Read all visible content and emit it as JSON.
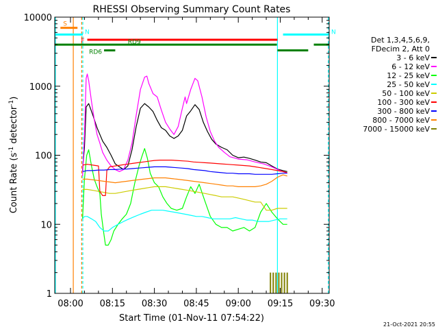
{
  "chart_data": {
    "type": "line",
    "title": "RHESSI Observing Summary Count Rates",
    "xlabel": "Start Time (01-Nov-11 07:54:22)",
    "ylabel": "Count Rate (s⁻¹ detector⁻¹)",
    "y_scale": "log",
    "ylim": [
      1,
      10000
    ],
    "xlim_minutes_of_day": [
      474.37,
      572.5
    ],
    "x_ticks": [
      {
        "label": "08:00",
        "value": 480
      },
      {
        "label": "08:15",
        "value": 495
      },
      {
        "label": "08:30",
        "value": 510
      },
      {
        "label": "08:45",
        "value": 525
      },
      {
        "label": "09:00",
        "value": 540
      },
      {
        "label": "09:15",
        "value": 555
      },
      {
        "label": "09:30",
        "value": 570
      }
    ],
    "y_ticks": [
      {
        "label": "1",
        "value": 1
      },
      {
        "label": "10",
        "value": 10
      },
      {
        "label": "100",
        "value": 100
      },
      {
        "label": "1000",
        "value": 1000
      },
      {
        "label": "10000",
        "value": 10000
      }
    ],
    "legend_header": [
      "Det 1,3,4,5,6,9,",
      "FDecim 2, Att 0"
    ],
    "legend_position": "right",
    "timestamp": "21-Oct-2021 20:55",
    "series": [
      {
        "name": "3 - 6 keV",
        "color": "#000000",
        "x": [
          484.3,
          485.0,
          485.6,
          486.5,
          488.0,
          489.5,
          490.5,
          491.5,
          493.0,
          494.5,
          496.0,
          497.5,
          499.0,
          500.5,
          502.0,
          503.5,
          505.0,
          506.5,
          508.0,
          509.5,
          511.0,
          512.5,
          514.0,
          515.5,
          517.0,
          518.5,
          520.0,
          521.5,
          523.0,
          524.5,
          526.0,
          527.5,
          529.0,
          530.5,
          532.0,
          534.0,
          536.0,
          538.0,
          540.0,
          542.0,
          544.0,
          546.0,
          548.0,
          550.0,
          552.0,
          554.0,
          556.0,
          557.5
        ],
        "y": [
          60,
          130,
          500,
          560,
          380,
          250,
          200,
          160,
          130,
          100,
          75,
          68,
          62,
          70,
          120,
          260,
          480,
          560,
          500,
          430,
          320,
          250,
          230,
          190,
          175,
          190,
          230,
          370,
          440,
          540,
          460,
          300,
          220,
          170,
          145,
          130,
          120,
          100,
          92,
          94,
          90,
          85,
          80,
          78,
          70,
          63,
          60,
          58
        ]
      },
      {
        "name": "6 - 12 keV",
        "color": "#ff00ff",
        "x": [
          484.3,
          485.0,
          485.6,
          486.0,
          486.5,
          487.5,
          488.5,
          489.5,
          490.5,
          491.5,
          493.0,
          494.5,
          496.0,
          497.5,
          499.0,
          500.5,
          502.0,
          503.5,
          505.0,
          506.5,
          507.3,
          508.0,
          509.5,
          511.0,
          512.5,
          514.0,
          515.5,
          517.0,
          518.5,
          520.0,
          521.0,
          521.5,
          523.0,
          524.5,
          525.5,
          527.0,
          528.5,
          530.0,
          531.5,
          533.0,
          535.0,
          537.0,
          540.0,
          543.0,
          546.0,
          549.0,
          552.0,
          555.0,
          557.5
        ],
        "y": [
          50,
          200,
          1300,
          1500,
          1200,
          600,
          330,
          200,
          150,
          110,
          85,
          70,
          62,
          58,
          62,
          85,
          150,
          380,
          900,
          1350,
          1400,
          1100,
          780,
          700,
          450,
          300,
          240,
          200,
          260,
          480,
          700,
          560,
          900,
          1300,
          1200,
          700,
          360,
          220,
          160,
          130,
          110,
          95,
          88,
          86,
          80,
          75,
          68,
          60,
          55
        ]
      },
      {
        "name": "12 - 25 keV",
        "color": "#00ff00",
        "x": [
          484.3,
          485.0,
          485.8,
          486.5,
          487.5,
          488.5,
          489.5,
          490.5,
          491.0,
          491.8,
          492.5,
          493.5,
          494.5,
          495.5,
          497.0,
          498.5,
          500.0,
          501.5,
          503.0,
          504.5,
          505.5,
          506.5,
          507.5,
          508.5,
          510.0,
          511.5,
          513.0,
          514.5,
          516.0,
          518.0,
          520.0,
          521.5,
          523.0,
          524.5,
          526.0,
          528.0,
          530.0,
          532.0,
          534.0,
          536.0,
          538.0,
          540.0,
          542.0,
          544.0,
          546.0,
          548.0,
          550.0,
          552.0,
          554.0,
          556.0,
          557.5
        ],
        "y": [
          12,
          45,
          100,
          120,
          70,
          45,
          35,
          28,
          14,
          8,
          5,
          5,
          6,
          8,
          10,
          12,
          14,
          20,
          40,
          70,
          95,
          125,
          90,
          55,
          40,
          35,
          25,
          20,
          17,
          16,
          17,
          25,
          35,
          28,
          38,
          22,
          13,
          10,
          9,
          9,
          8,
          8.5,
          9,
          8,
          9,
          15,
          20,
          15,
          12,
          10,
          10
        ]
      },
      {
        "name": "25 - 50 keV",
        "color": "#00ffff",
        "x": [
          484.3,
          485.0,
          486.0,
          487.5,
          489.0,
          490.5,
          492.0,
          493.5,
          495.0,
          497.0,
          499.0,
          501.0,
          503.0,
          505.0,
          507.0,
          509.0,
          511.0,
          513.0,
          515.0,
          517.0,
          519.0,
          521.0,
          523.0,
          525.0,
          527.0,
          529.0,
          531.0,
          533.0,
          535.0,
          537.0,
          539.0,
          541.0,
          543.0,
          545.0,
          547.0,
          549.0,
          551.0,
          553.0,
          555.0,
          557.5
        ],
        "y": [
          12,
          13,
          13,
          12,
          11,
          9,
          8,
          8,
          9,
          10,
          11,
          12,
          13,
          14,
          15,
          16,
          16,
          16,
          15.5,
          15,
          14.5,
          14,
          13.5,
          13,
          13,
          12.5,
          12,
          12,
          12,
          12,
          12.5,
          12,
          11.5,
          11.5,
          11,
          11,
          11,
          11.5,
          12,
          12
        ]
      },
      {
        "name": "50 - 100 keV",
        "color": "#cccc00",
        "x": [
          484.3,
          486.0,
          488.0,
          490.0,
          492.0,
          494.0,
          496.0,
          498.0,
          500.0,
          502.0,
          504.0,
          506.0,
          508.0,
          510.0,
          512.0,
          514.0,
          516.0,
          518.0,
          520.0,
          522.0,
          524.0,
          526.0,
          528.0,
          530.0,
          532.0,
          534.0,
          536.0,
          538.0,
          540.0,
          542.0,
          544.0,
          546.0,
          548.0,
          550.0,
          552.0,
          554.0,
          556.0,
          557.5
        ],
        "y": [
          32,
          32,
          31,
          30,
          29,
          28,
          28,
          29,
          30,
          31,
          32,
          33,
          34,
          35,
          35,
          35,
          34,
          33,
          32,
          31,
          30,
          29,
          28,
          27,
          26,
          25,
          25,
          25,
          24,
          23,
          22,
          21,
          21,
          16,
          16,
          17,
          17,
          17
        ]
      },
      {
        "name": "100 - 300 keV",
        "color": "#ff0000",
        "x": [
          484.3,
          486.0,
          488.0,
          490.0,
          490.5,
          491.5,
          492.5,
          493.0,
          494.0,
          496.0,
          498.0,
          500.0,
          502.0,
          504.0,
          506.0,
          508.0,
          510.0,
          512.0,
          514.0,
          516.0,
          518.0,
          520.0,
          522.0,
          524.0,
          526.0,
          528.0,
          530.0,
          532.0,
          534.0,
          536.0,
          538.0,
          540.0,
          542.0,
          544.0,
          546.0,
          548.0,
          550.0,
          552.0,
          554.0,
          556.0,
          557.5
        ],
        "y": [
          72,
          74,
          72,
          70,
          30,
          26,
          26,
          60,
          68,
          70,
          72,
          74,
          76,
          78,
          80,
          82,
          84,
          85,
          85,
          85,
          84,
          83,
          82,
          80,
          79,
          78,
          77,
          76,
          75,
          74,
          73,
          72,
          71,
          70,
          68,
          66,
          64,
          62,
          60,
          58,
          56
        ]
      },
      {
        "name": "300 - 800 keV",
        "color": "#0000ff",
        "x": [
          484.3,
          486.0,
          488.0,
          490.0,
          492.0,
          494.0,
          496.0,
          498.0,
          500.0,
          502.0,
          504.0,
          506.0,
          508.0,
          510.0,
          512.0,
          514.0,
          516.0,
          518.0,
          520.0,
          522.0,
          524.0,
          526.0,
          528.0,
          530.0,
          532.0,
          534.0,
          536.0,
          538.0,
          540.0,
          542.0,
          544.0,
          546.0,
          548.0,
          550.0,
          552.0,
          554.0,
          556.0,
          557.5
        ],
        "y": [
          58,
          60,
          60,
          61,
          61,
          62,
          62,
          63,
          63,
          64,
          65,
          66,
          67,
          68,
          68,
          68,
          67,
          66,
          65,
          64,
          62,
          61,
          60,
          58,
          57,
          56,
          55,
          55,
          54,
          54,
          54,
          53,
          53,
          53,
          53,
          54,
          55,
          55
        ]
      },
      {
        "name": "800 - 7000 keV",
        "color": "#ff8000",
        "x": [
          484.3,
          486.0,
          488.0,
          490.0,
          492.0,
          494.0,
          496.0,
          498.0,
          500.0,
          502.0,
          504.0,
          506.0,
          508.0,
          510.0,
          512.0,
          514.0,
          516.0,
          518.0,
          520.0,
          522.0,
          524.0,
          526.0,
          528.0,
          530.0,
          532.0,
          534.0,
          536.0,
          538.0,
          540.0,
          542.0,
          544.0,
          546.0,
          548.0,
          550.0,
          552.0,
          554.0,
          556.0,
          557.5
        ],
        "y": [
          45,
          45,
          44,
          43,
          42,
          41,
          40,
          41,
          42,
          43,
          44,
          45,
          46,
          47,
          47,
          47,
          46,
          45,
          44,
          43,
          42,
          41,
          40,
          39,
          38,
          37,
          36,
          36,
          35,
          35,
          35,
          35,
          36,
          38,
          42,
          48,
          52,
          50
        ]
      },
      {
        "name": "7000 - 15000 keV",
        "color": "#808000",
        "x": [
          551.5,
          552.5,
          553.5,
          554.5,
          555.5,
          556.5,
          557.5
        ],
        "y": [
          2,
          2,
          2,
          2,
          2,
          2,
          2
        ]
      }
    ],
    "attenuator_bars": [
      {
        "label": "S",
        "color": "#ff8000",
        "x": [
          476.4,
          482.5
        ],
        "y": 7000
      },
      {
        "label": "N",
        "color": "#00ffff",
        "x": [
          474.4,
          484.4
        ],
        "y": 5600
      },
      {
        "label": "N",
        "color": "#00ffff",
        "x": [
          556.0,
          572.5
        ],
        "y": 5600
      },
      {
        "label": "F",
        "color": "#ff0000",
        "x": [
          486.0,
          554.0
        ],
        "y": 4700
      },
      {
        "label": "RD9",
        "color": "#008000",
        "x": [
          474.4,
          553.8
        ],
        "y": 4000
      },
      {
        "label": "",
        "color": "#008000",
        "x": [
          554.0,
          565.0
        ],
        "y": 3300
      },
      {
        "label": "",
        "color": "#008000",
        "x": [
          567.0,
          572.5
        ],
        "y": 4000
      },
      {
        "label": "RD6",
        "color": "#008000",
        "x": [
          492.0,
          496.0
        ],
        "y": 3300
      }
    ],
    "vertical_markers": [
      {
        "color": "#00ffff",
        "x": 474.6,
        "style": "solid"
      },
      {
        "color": "#ff8000",
        "x": 481.0,
        "style": "solid"
      },
      {
        "color": "#ff8000",
        "x": 484.0,
        "style": "dashed"
      },
      {
        "color": "#00ffff",
        "x": 484.4,
        "style": "dashed"
      },
      {
        "color": "#00ffff",
        "x": 554.0,
        "style": "solid"
      },
      {
        "color": "#00ffff",
        "x": 572.2,
        "style": "dashed"
      }
    ]
  }
}
